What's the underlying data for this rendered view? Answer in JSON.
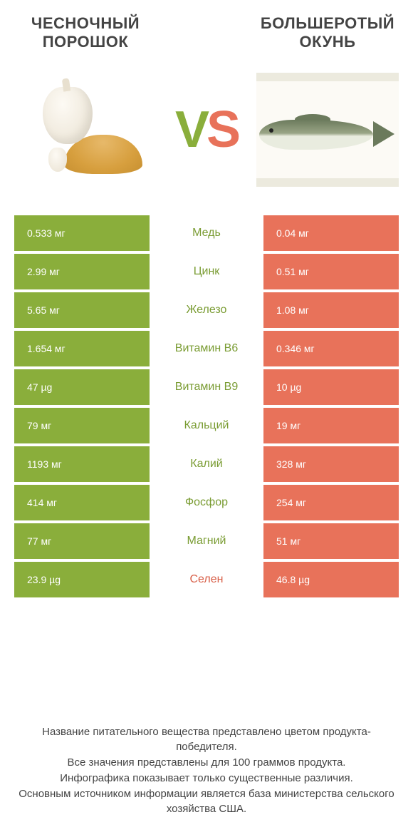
{
  "colors": {
    "green": "#8aae3b",
    "orange": "#e8725a",
    "green_text": "#7a9c33",
    "orange_text": "#d85f48",
    "background": "#ffffff"
  },
  "header": {
    "left_title": "ЧЕСНОЧНЫЙ ПОРОШОК",
    "right_title": "БОЛЬШЕРОТЫЙ ОКУНЬ",
    "vs_v": "V",
    "vs_s": "S",
    "left_image_desc": "garlic-powder",
    "right_image_desc": "largemouth-bass"
  },
  "table": {
    "winner_sides_comment": "winner=left → left green bg + mid green text; winner=right → right orange bg + mid orange text",
    "rows": [
      {
        "left": "0.533 мг",
        "label": "Медь",
        "right": "0.04 мг",
        "winner": "left"
      },
      {
        "left": "2.99 мг",
        "label": "Цинк",
        "right": "0.51 мг",
        "winner": "left"
      },
      {
        "left": "5.65 мг",
        "label": "Железо",
        "right": "1.08 мг",
        "winner": "left"
      },
      {
        "left": "1.654 мг",
        "label": "Витамин B6",
        "right": "0.346 мг",
        "winner": "left"
      },
      {
        "left": "47 µg",
        "label": "Витамин B9",
        "right": "10 µg",
        "winner": "left"
      },
      {
        "left": "79 мг",
        "label": "Кальций",
        "right": "19 мг",
        "winner": "left"
      },
      {
        "left": "1193 мг",
        "label": "Калий",
        "right": "328 мг",
        "winner": "left"
      },
      {
        "left": "414 мг",
        "label": "Фосфор",
        "right": "254 мг",
        "winner": "left"
      },
      {
        "left": "77 мг",
        "label": "Магний",
        "right": "51 мг",
        "winner": "left"
      },
      {
        "left": "23.9 µg",
        "label": "Селен",
        "right": "46.8 µg",
        "winner": "right"
      }
    ]
  },
  "footer": {
    "line1": "Название питательного вещества представлено цветом продукта-победителя.",
    "line2": "Все значения представлены для 100 граммов продукта.",
    "line3": "Инфографика показывает только существенные различия.",
    "line4": "Основным источником информации является база министерства сельского хозяйства США."
  }
}
